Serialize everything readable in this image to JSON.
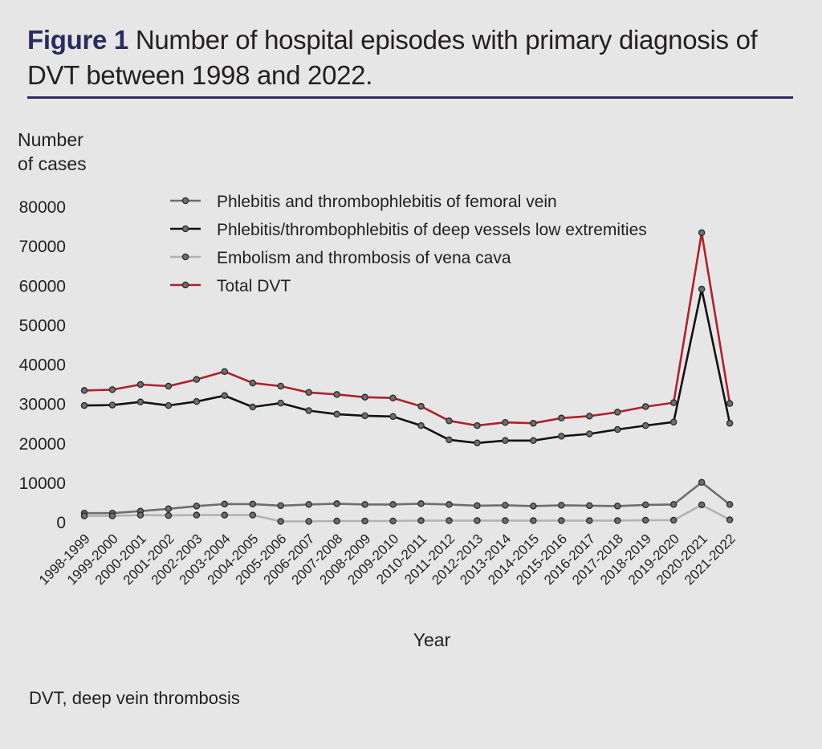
{
  "figure": {
    "label": "Figure 1",
    "title": "Number of hospital episodes with primary diagnosis of DVT between 1998 and 2022."
  },
  "footnote": "DVT, deep vein thrombosis",
  "chart_data": {
    "type": "line",
    "ylabel_line1": "Number",
    "ylabel_line2": "of cases",
    "xlabel": "Year",
    "ylim": [
      0,
      80000
    ],
    "yticks": [
      0,
      10000,
      20000,
      30000,
      40000,
      50000,
      60000,
      70000,
      80000
    ],
    "grid": false,
    "legend_position": "top-left",
    "categories": [
      "1998-1999",
      "1999-2000",
      "2000-2001",
      "2001-2002",
      "2002-2003",
      "2003-2004",
      "2004-2005",
      "2005-2006",
      "2006-2007",
      "2007-2008",
      "2008-2009",
      "2009-2010",
      "2010-2011",
      "2011-2012",
      "2012-2013",
      "2013-2014",
      "2014-2015",
      "2015-2016",
      "2016-2017",
      "2017-2018",
      "2018-2019",
      "2019-2020",
      "2020-2021",
      "2021-2022"
    ],
    "series": [
      {
        "name": "Phlebitis and thrombophlebitis of femoral vein",
        "color": "#6d6e71",
        "values": [
          2200,
          2200,
          2700,
          3300,
          4000,
          4500,
          4500,
          4100,
          4400,
          4600,
          4400,
          4400,
          4600,
          4400,
          4100,
          4200,
          4000,
          4200,
          4100,
          4000,
          4300,
          4400,
          10000,
          4400
        ]
      },
      {
        "name": "Phlebitis/thrombophlebitis of deep vessels low extremities",
        "color": "#111111",
        "values": [
          29500,
          29600,
          30400,
          29500,
          30500,
          32000,
          29100,
          30100,
          28200,
          27300,
          26900,
          26700,
          24400,
          20800,
          20000,
          20600,
          20600,
          21700,
          22300,
          23400,
          24400,
          25300,
          59000,
          25000
        ]
      },
      {
        "name": "Embolism and thrombosis of vena cava",
        "color": "#b1b2b4",
        "values": [
          1500,
          1500,
          1700,
          1600,
          1700,
          1700,
          1700,
          100,
          100,
          200,
          200,
          200,
          300,
          300,
          300,
          300,
          300,
          300,
          300,
          300,
          400,
          400,
          4300,
          500
        ]
      },
      {
        "name": "Total DVT",
        "color": "#b2202a",
        "values": [
          33300,
          33500,
          34800,
          34400,
          36100,
          38100,
          35200,
          34400,
          32800,
          32300,
          31600,
          31400,
          29300,
          25600,
          24400,
          25200,
          25000,
          26300,
          26800,
          27800,
          29200,
          30200,
          73300,
          30000
        ]
      }
    ]
  }
}
